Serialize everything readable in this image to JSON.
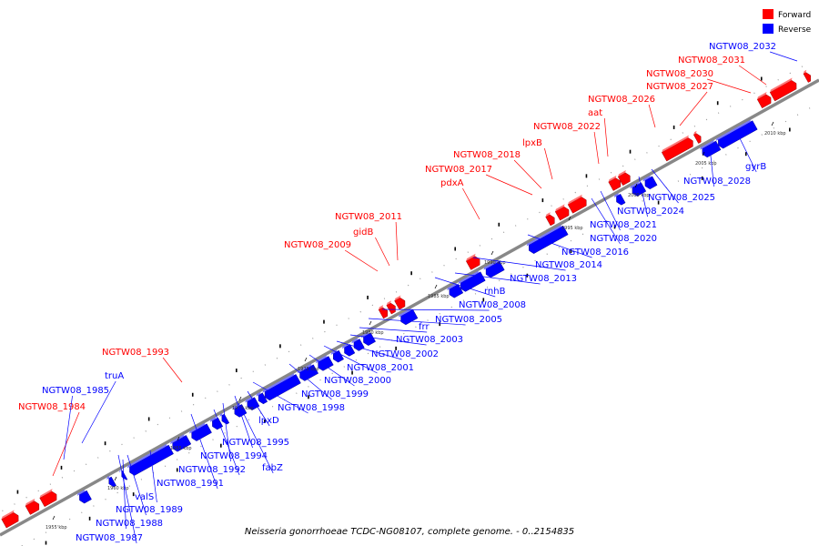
{
  "caption": "Neisseria gonorrhoeae TCDC-NG08107, complete genome. - 0..2154835",
  "legend": [
    {
      "label": "Forward",
      "color": "#ff0000"
    },
    {
      "label": "Reverse",
      "color": "#0000ff"
    }
  ],
  "colors": {
    "forward": "#ff0000",
    "reverse": "#0000ff",
    "axis": "#888888"
  },
  "ticks": [
    "1955 kbp",
    "1960 kbp",
    "1965 kbp",
    "1970 kbp",
    "1975 kbp",
    "1980 kbp",
    "1985 kbp",
    "1990 kbp",
    "1995 kbp",
    "2000 kbp",
    "2005 kbp",
    "2010 kbp"
  ],
  "forward_labels": [
    "NGTW08_1984",
    "NGTW08_1993",
    "NGTW08_2009",
    "gidB",
    "NGTW08_2011",
    "pdxA",
    "NGTW08_2017",
    "NGTW08_2018",
    "lpxB",
    "NGTW08_2022",
    "aat",
    "NGTW08_2026",
    "NGTW08_2027",
    "NGTW08_2030",
    "NGTW08_2031"
  ],
  "reverse_labels": [
    "NGTW08_1985",
    "truA",
    "NGTW08_1987",
    "NGTW08_1988",
    "NGTW08_1989",
    "valS",
    "NGTW08_1991",
    "NGTW08_1992",
    "NGTW08_1994",
    "fabZ",
    "NGTW08_1995",
    "lpxD",
    "NGTW08_1998",
    "NGTW08_1999",
    "NGTW08_2000",
    "NGTW08_2001",
    "NGTW08_2002",
    "NGTW08_2003",
    "frr",
    "NGTW08_2005",
    "NGTW08_2008",
    "rnhB",
    "NGTW08_2013",
    "NGTW08_2014",
    "NGTW08_2016",
    "NGTW08_2020",
    "NGTW08_2021",
    "NGTW08_2024",
    "NGTW08_2025",
    "NGTW08_2028",
    "gyrB",
    "NGTW08_2032"
  ]
}
